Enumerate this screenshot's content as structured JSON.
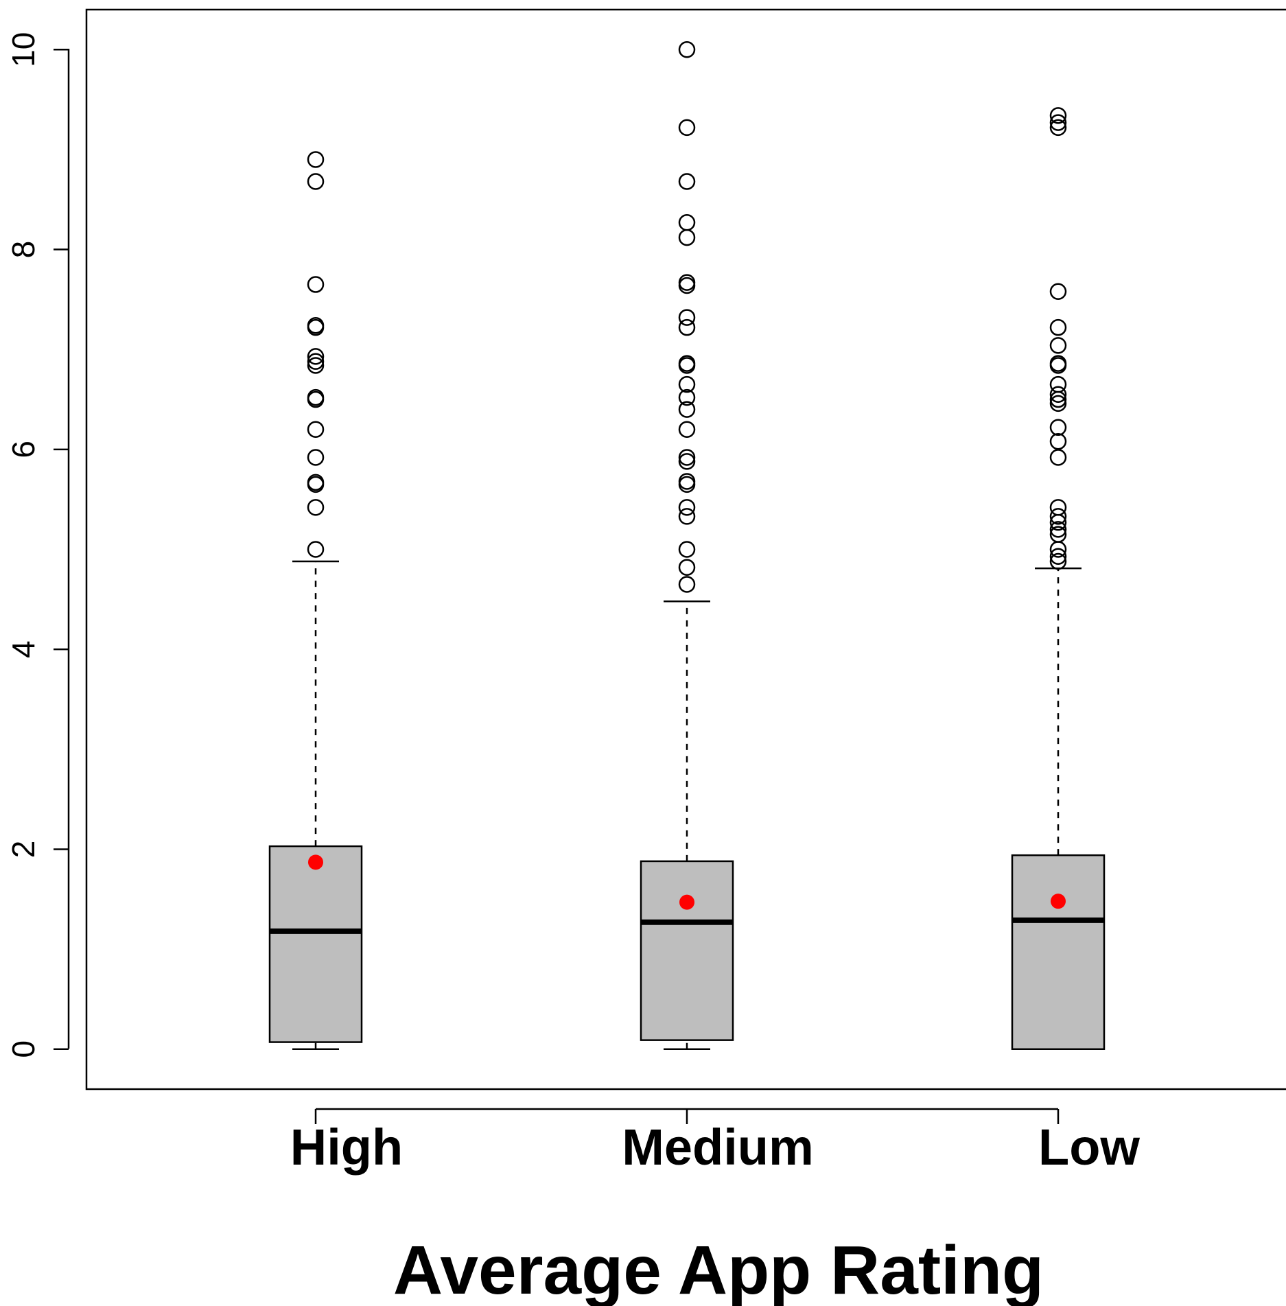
{
  "chart_data": {
    "type": "box",
    "title": "",
    "xlabel": "Average App Rating",
    "ylabel": "",
    "categories": [
      "High",
      "Medium",
      "Low"
    ],
    "y_ticks": [
      "0",
      "2",
      "4",
      "6",
      "8",
      "10"
    ],
    "ylim": [
      -0.4,
      10.4
    ],
    "grid": false,
    "colors": {
      "box_fill": "#bebebe",
      "box_stroke": "#000000",
      "mean_point": "#ff0000"
    },
    "series": [
      {
        "category": "High",
        "whisker_low": 0.0,
        "q1": 0.07,
        "median": 1.18,
        "q3": 2.03,
        "whisker_high": 4.88,
        "mean": 1.87,
        "outliers": [
          5.0,
          5.42,
          5.65,
          5.67,
          5.92,
          6.2,
          6.5,
          6.52,
          6.84,
          6.88,
          6.93,
          7.22,
          7.24,
          7.65,
          8.68,
          8.9
        ]
      },
      {
        "category": "Medium",
        "whisker_low": 0.0,
        "q1": 0.09,
        "median": 1.27,
        "q3": 1.88,
        "whisker_high": 4.48,
        "mean": 1.47,
        "outliers": [
          4.65,
          4.82,
          5.0,
          5.33,
          5.42,
          5.65,
          5.68,
          5.88,
          5.92,
          6.2,
          6.4,
          6.52,
          6.65,
          6.84,
          6.86,
          7.22,
          7.32,
          7.64,
          7.67,
          8.12,
          8.27,
          8.68,
          9.22,
          10.0
        ]
      },
      {
        "category": "Low",
        "whisker_low": 0.0,
        "q1": 0.0,
        "median": 1.29,
        "q3": 1.94,
        "whisker_high": 4.81,
        "mean": 1.48,
        "outliers": [
          4.88,
          4.93,
          5.0,
          5.15,
          5.2,
          5.27,
          5.33,
          5.42,
          5.92,
          6.08,
          6.22,
          6.46,
          6.5,
          6.55,
          6.65,
          6.84,
          6.86,
          7.04,
          7.22,
          7.58,
          9.22,
          9.27,
          9.34
        ]
      }
    ]
  }
}
